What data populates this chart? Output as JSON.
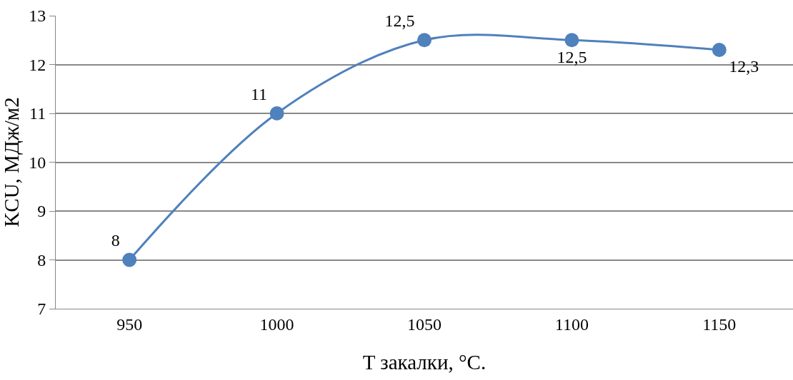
{
  "chart_data": {
    "type": "line",
    "xlabel": "T закалки, °C.",
    "ylabel": "KCU, МДж/м2",
    "categories": [
      "950",
      "1000",
      "1050",
      "1100",
      "1150"
    ],
    "series": [
      {
        "color": "#4f81bd",
        "values": [
          8,
          11,
          12.5,
          12.5,
          12.3
        ],
        "value_labels": [
          "8",
          "11",
          "12,5",
          "12,5",
          "12,3"
        ]
      }
    ],
    "ylim": [
      7,
      13
    ],
    "yticks": [
      7,
      8,
      9,
      10,
      11,
      12,
      13
    ],
    "grid": "y",
    "marker": "circle",
    "line_style": "solid",
    "legend": false
  }
}
